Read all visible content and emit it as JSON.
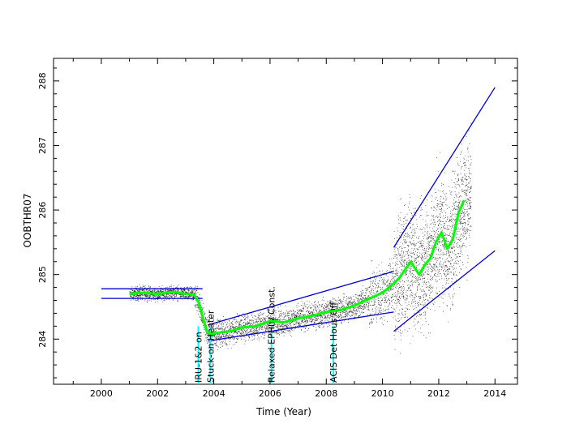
{
  "chart_data": {
    "type": "scatter",
    "title": "",
    "xlabel": "Time (Year)",
    "ylabel": "OOBTHR07",
    "xlim": [
      1998.3,
      2014.8
    ],
    "ylim": [
      283.3,
      288.35
    ],
    "x_ticks": [
      2000,
      2002,
      2004,
      2006,
      2008,
      2010,
      2012,
      2014
    ],
    "y_ticks": [
      284,
      285,
      286,
      287,
      288
    ],
    "grid": false,
    "legend": "none",
    "colors": {
      "data_points": "#000000",
      "smoothed_trend": "#00ff00",
      "envelope_lines": "#0000cc",
      "event_markers": "#00ffff"
    },
    "series": [
      {
        "kind": "smoothed",
        "x": [
          2001.0,
          2001.5,
          2002.0,
          2002.5,
          2003.0,
          2003.3,
          2003.45,
          2003.6,
          2003.75,
          2003.9,
          2004.2,
          2004.6,
          2005.0,
          2005.5,
          2006.0,
          2006.5,
          2007.0,
          2007.5,
          2008.0,
          2008.5,
          2009.0,
          2009.5,
          2010.0,
          2010.3,
          2010.6,
          2011.0,
          2011.3,
          2011.5,
          2011.7,
          2011.9,
          2012.1,
          2012.3,
          2012.5,
          2012.7,
          2012.9
        ],
        "y": [
          284.7,
          284.72,
          284.7,
          284.73,
          284.7,
          284.69,
          284.58,
          284.35,
          284.12,
          284.08,
          284.1,
          284.12,
          284.18,
          284.2,
          284.28,
          284.26,
          284.32,
          284.36,
          284.42,
          284.45,
          284.52,
          284.62,
          284.72,
          284.82,
          284.95,
          285.2,
          285.0,
          285.15,
          285.25,
          285.5,
          285.65,
          285.4,
          285.55,
          285.95,
          286.15
        ]
      },
      {
        "kind": "envelope",
        "segments": [
          {
            "x": [
              2000.0,
              2003.6
            ],
            "y": [
              284.78,
              284.78
            ]
          },
          {
            "x": [
              2000.0,
              2003.6
            ],
            "y": [
              284.63,
              284.63
            ]
          },
          {
            "x": [
              2003.8,
              2010.4
            ],
            "y": [
              284.22,
              285.05
            ]
          },
          {
            "x": [
              2003.8,
              2010.4
            ],
            "y": [
              283.97,
              284.42
            ]
          },
          {
            "x": [
              2010.4,
              2014.0
            ],
            "y": [
              285.42,
              287.9
            ]
          },
          {
            "x": [
              2010.4,
              2014.0
            ],
            "y": [
              284.12,
              285.37
            ]
          }
        ]
      }
    ],
    "annotations": [
      {
        "x": 2003.45,
        "text": "IRU-1&2 on"
      },
      {
        "x": 2003.88,
        "text": "Stuck-on Heater"
      },
      {
        "x": 2006.05,
        "text": "Relaxed EPHIN Const."
      },
      {
        "x": 2008.25,
        "text": "ACIS Det Hous Off"
      }
    ]
  }
}
